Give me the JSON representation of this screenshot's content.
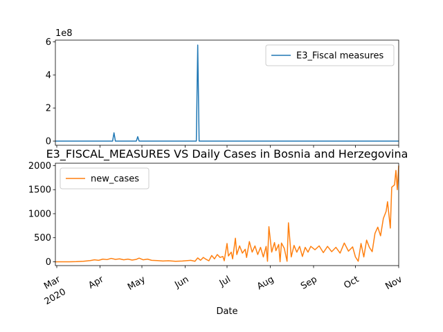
{
  "chart_data": [
    {
      "type": "line",
      "title": "",
      "xlabel": "",
      "ylabel": "",
      "offset_label": "1e8",
      "ylim": [
        -25000000,
        610000000
      ],
      "yticks": [
        0,
        200000000,
        400000000,
        600000000
      ],
      "ytick_labels": [
        "0",
        "2",
        "4",
        "6"
      ],
      "xlim": [
        "2020-02-29",
        "2020-11-01"
      ],
      "grid": false,
      "legend": "top-right",
      "series": [
        {
          "name": "E3_Fiscal measures",
          "color": "#1f77b4",
          "points": [
            [
              "2020-02-29",
              0
            ],
            [
              "2020-04-10",
              0
            ],
            [
              "2020-04-11",
              50000000
            ],
            [
              "2020-04-12",
              0
            ],
            [
              "2020-04-27",
              0
            ],
            [
              "2020-04-28",
              27000000
            ],
            [
              "2020-04-29",
              0
            ],
            [
              "2020-06-09",
              0
            ],
            [
              "2020-06-10",
              580000000
            ],
            [
              "2020-06-11",
              0
            ],
            [
              "2020-11-01",
              0
            ]
          ]
        }
      ]
    },
    {
      "type": "line",
      "title": "E3_FISCAL_MEASURES VS Daily Cases in Bosnia and Herzegovina",
      "xlabel": "Date",
      "ylabel": "",
      "ylim": [
        -80,
        2050
      ],
      "yticks": [
        0,
        500,
        1000,
        1500,
        2000
      ],
      "ytick_labels": [
        "0",
        "500",
        "1000",
        "1500",
        "2000"
      ],
      "xlim": [
        "2020-02-29",
        "2020-11-01"
      ],
      "grid": false,
      "legend": "top-left",
      "series": [
        {
          "name": "new_cases",
          "color": "#ff7f0e",
          "points": [
            [
              "2020-02-29",
              0
            ],
            [
              "2020-03-10",
              0
            ],
            [
              "2020-03-15",
              3
            ],
            [
              "2020-03-20",
              10
            ],
            [
              "2020-03-25",
              25
            ],
            [
              "2020-03-28",
              40
            ],
            [
              "2020-03-31",
              30
            ],
            [
              "2020-04-03",
              55
            ],
            [
              "2020-04-06",
              45
            ],
            [
              "2020-04-09",
              70
            ],
            [
              "2020-04-12",
              50
            ],
            [
              "2020-04-15",
              60
            ],
            [
              "2020-04-18",
              40
            ],
            [
              "2020-04-21",
              55
            ],
            [
              "2020-04-24",
              35
            ],
            [
              "2020-04-27",
              50
            ],
            [
              "2020-04-29",
              75
            ],
            [
              "2020-05-02",
              40
            ],
            [
              "2020-05-05",
              55
            ],
            [
              "2020-05-08",
              30
            ],
            [
              "2020-05-12",
              25
            ],
            [
              "2020-05-16",
              15
            ],
            [
              "2020-05-20",
              20
            ],
            [
              "2020-05-25",
              10
            ],
            [
              "2020-05-30",
              15
            ],
            [
              "2020-06-05",
              30
            ],
            [
              "2020-06-08",
              10
            ],
            [
              "2020-06-10",
              80
            ],
            [
              "2020-06-12",
              30
            ],
            [
              "2020-06-14",
              90
            ],
            [
              "2020-06-16",
              50
            ],
            [
              "2020-06-18",
              20
            ],
            [
              "2020-06-20",
              130
            ],
            [
              "2020-06-22",
              60
            ],
            [
              "2020-06-24",
              150
            ],
            [
              "2020-06-26",
              90
            ],
            [
              "2020-06-28",
              110
            ],
            [
              "2020-06-29",
              20
            ],
            [
              "2020-07-01",
              380
            ],
            [
              "2020-07-02",
              120
            ],
            [
              "2020-07-04",
              200
            ],
            [
              "2020-07-05",
              60
            ],
            [
              "2020-07-07",
              490
            ],
            [
              "2020-07-08",
              150
            ],
            [
              "2020-07-10",
              330
            ],
            [
              "2020-07-12",
              180
            ],
            [
              "2020-07-14",
              260
            ],
            [
              "2020-07-15",
              90
            ],
            [
              "2020-07-17",
              420
            ],
            [
              "2020-07-19",
              200
            ],
            [
              "2020-07-21",
              330
            ],
            [
              "2020-07-23",
              150
            ],
            [
              "2020-07-25",
              300
            ],
            [
              "2020-07-27",
              100
            ],
            [
              "2020-07-29",
              320
            ],
            [
              "2020-07-30",
              10
            ],
            [
              "2020-07-31",
              730
            ],
            [
              "2020-08-02",
              200
            ],
            [
              "2020-08-04",
              400
            ],
            [
              "2020-08-05",
              230
            ],
            [
              "2020-08-07",
              360
            ],
            [
              "2020-08-08",
              0
            ],
            [
              "2020-08-09",
              390
            ],
            [
              "2020-08-11",
              280
            ],
            [
              "2020-08-13",
              10
            ],
            [
              "2020-08-14",
              810
            ],
            [
              "2020-08-16",
              100
            ],
            [
              "2020-08-18",
              340
            ],
            [
              "2020-08-20",
              200
            ],
            [
              "2020-08-22",
              320
            ],
            [
              "2020-08-24",
              110
            ],
            [
              "2020-08-26",
              300
            ],
            [
              "2020-08-28",
              200
            ],
            [
              "2020-08-30",
              320
            ],
            [
              "2020-09-02",
              250
            ],
            [
              "2020-09-05",
              330
            ],
            [
              "2020-09-08",
              190
            ],
            [
              "2020-09-11",
              320
            ],
            [
              "2020-09-14",
              210
            ],
            [
              "2020-09-17",
              300
            ],
            [
              "2020-09-20",
              180
            ],
            [
              "2020-09-23",
              390
            ],
            [
              "2020-09-26",
              220
            ],
            [
              "2020-09-29",
              310
            ],
            [
              "2020-10-01",
              100
            ],
            [
              "2020-10-03",
              10
            ],
            [
              "2020-10-05",
              380
            ],
            [
              "2020-10-07",
              100
            ],
            [
              "2020-10-09",
              450
            ],
            [
              "2020-10-11",
              300
            ],
            [
              "2020-10-13",
              210
            ],
            [
              "2020-10-15",
              590
            ],
            [
              "2020-10-17",
              720
            ],
            [
              "2020-10-19",
              540
            ],
            [
              "2020-10-21",
              900
            ],
            [
              "2020-10-23",
              1050
            ],
            [
              "2020-10-24",
              1250
            ],
            [
              "2020-10-26",
              700
            ],
            [
              "2020-10-27",
              1550
            ],
            [
              "2020-10-29",
              1600
            ],
            [
              "2020-10-30",
              1900
            ],
            [
              "2020-10-31",
              1500
            ],
            [
              "2020-11-01",
              2000
            ]
          ]
        }
      ]
    }
  ],
  "x_axis": {
    "ticks": [
      {
        "date": "2020-03-01",
        "label": "Mar",
        "sub": "2020"
      },
      {
        "date": "2020-04-01",
        "label": "Apr",
        "sub": ""
      },
      {
        "date": "2020-05-01",
        "label": "May",
        "sub": ""
      },
      {
        "date": "2020-06-01",
        "label": "Jun",
        "sub": ""
      },
      {
        "date": "2020-07-01",
        "label": "Jul",
        "sub": ""
      },
      {
        "date": "2020-08-01",
        "label": "Aug",
        "sub": ""
      },
      {
        "date": "2020-09-01",
        "label": "Sep",
        "sub": ""
      },
      {
        "date": "2020-10-01",
        "label": "Oct",
        "sub": ""
      },
      {
        "date": "2020-11-01",
        "label": "Nov",
        "sub": ""
      }
    ]
  }
}
